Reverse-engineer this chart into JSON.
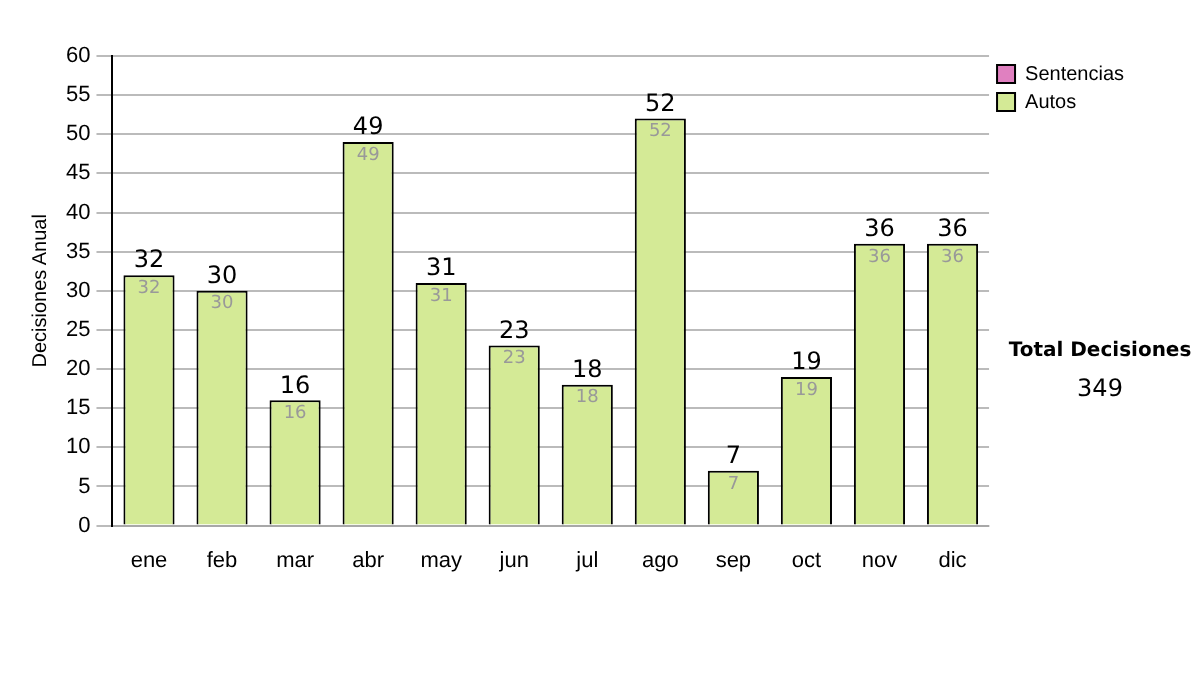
{
  "chart_data": {
    "type": "bar",
    "stacked": true,
    "ylabel": "Decisiones Anual",
    "categories": [
      "ene",
      "feb",
      "mar",
      "abr",
      "may",
      "jun",
      "jul",
      "ago",
      "sep",
      "oct",
      "nov",
      "dic"
    ],
    "series": [
      {
        "name": "Sentencias",
        "color": "#e080c0",
        "values": [
          0,
          0,
          0,
          0,
          0,
          0,
          0,
          0,
          0,
          0,
          0,
          0
        ]
      },
      {
        "name": "Autos",
        "color": "#d4ea96",
        "values": [
          32,
          30,
          16,
          49,
          31,
          23,
          18,
          52,
          7,
          19,
          36,
          36
        ],
        "value_labels": [
          "32",
          "30",
          "16",
          "49",
          "31",
          "23",
          "18",
          "52",
          "7",
          "19",
          "36",
          "36"
        ]
      }
    ],
    "totals": [
      "32",
      "30",
      "16",
      "49",
      "31",
      "23",
      "18",
      "52",
      "7",
      "19",
      "36",
      "36"
    ],
    "ylim": [
      0,
      60
    ],
    "yticks": [
      0,
      5,
      10,
      15,
      20,
      25,
      30,
      35,
      40,
      45,
      50,
      55,
      60
    ],
    "grid": "y",
    "legend": "right",
    "annotations": [
      "Total Decisiones",
      "349"
    ]
  }
}
